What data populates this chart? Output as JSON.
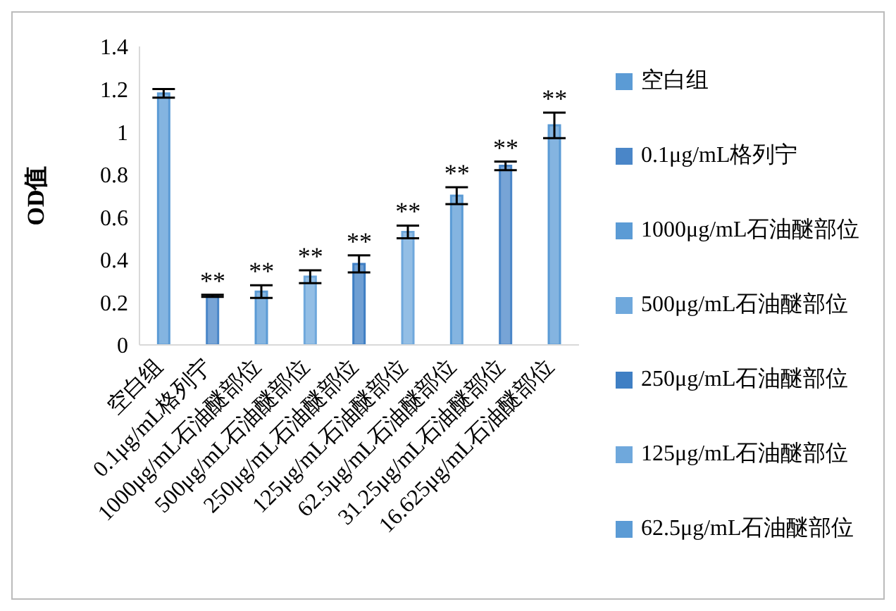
{
  "chart_data": {
    "type": "bar",
    "stacked": true,
    "ylabel": "OD值",
    "categories": [
      "空白组",
      "0.1μg/mL格列宁",
      "1000μg/mL石油醚部位",
      "500μg/mL石油醚部位",
      "250μg/mL石油醚部位",
      "125μg/mL石油醚部位",
      "62.5μg/mL石油醚部位",
      "31.25μg/mL石油醚部位",
      "16.625μg/mL石油醚部位"
    ],
    "series": [
      {
        "name": "空白组",
        "color": "#5b9bd5",
        "values": [
          1.18,
          null,
          null,
          null,
          null,
          null,
          null,
          null,
          null
        ],
        "errors": [
          0.02,
          null,
          null,
          null,
          null,
          null,
          null,
          null,
          null
        ]
      },
      {
        "name": "0.1μg/mL格列宁",
        "color": "#4a86c8",
        "values": [
          null,
          0.23,
          null,
          null,
          null,
          null,
          null,
          null,
          null
        ],
        "errors": [
          null,
          0.005,
          null,
          null,
          null,
          null,
          null,
          null,
          null
        ]
      },
      {
        "name": "1000μg/mL石油醚部位",
        "color": "#5b9bd5",
        "values": [
          null,
          null,
          0.25,
          null,
          null,
          null,
          null,
          null,
          null
        ],
        "errors": [
          null,
          null,
          0.03,
          null,
          null,
          null,
          null,
          null,
          null
        ]
      },
      {
        "name": "500μg/mL石油醚部位",
        "color": "#6fa8dc",
        "values": [
          null,
          null,
          null,
          0.32,
          null,
          null,
          null,
          null,
          null
        ],
        "errors": [
          null,
          null,
          null,
          0.03,
          null,
          null,
          null,
          null,
          null
        ]
      },
      {
        "name": "250μg/mL石油醚部位",
        "color": "#3f7fc4",
        "values": [
          null,
          null,
          null,
          null,
          0.38,
          null,
          null,
          null,
          null
        ],
        "errors": [
          null,
          null,
          null,
          null,
          0.04,
          null,
          null,
          null,
          null
        ]
      },
      {
        "name": "125μg/mL石油醚部位",
        "color": "#6fa8dc",
        "values": [
          null,
          null,
          null,
          null,
          null,
          0.53,
          null,
          null,
          null
        ],
        "errors": [
          null,
          null,
          null,
          null,
          null,
          0.03,
          null,
          null,
          null
        ]
      },
      {
        "name": "62.5μg/mL石油醚部位",
        "color": "#5b9bd5",
        "values": [
          null,
          null,
          null,
          null,
          null,
          null,
          0.7,
          null,
          null
        ],
        "errors": [
          null,
          null,
          null,
          null,
          null,
          null,
          0.04,
          null,
          null
        ]
      },
      {
        "color": "#4a86c8",
        "values": [
          null,
          null,
          null,
          null,
          null,
          null,
          null,
          0.84,
          null
        ],
        "errors": [
          null,
          null,
          null,
          null,
          null,
          null,
          null,
          0.02,
          null
        ]
      },
      {
        "color": "#5b9bd5",
        "values": [
          null,
          null,
          null,
          null,
          null,
          null,
          null,
          null,
          1.03
        ],
        "errors": [
          null,
          null,
          null,
          null,
          null,
          null,
          null,
          null,
          0.06
        ]
      }
    ],
    "ylim": [
      0,
      1.4
    ],
    "yticks": [
      0,
      0.2,
      0.4,
      0.6,
      0.8,
      1,
      1.2,
      1.4
    ],
    "grid": false,
    "legend": "right",
    "annotations": [
      {
        "text": "**",
        "x": "0.1μg/mL格列宁",
        "y": 0.235
      },
      {
        "text": "**",
        "x": "1000μg/mL石油醚部位",
        "y": 0.28
      },
      {
        "text": "**",
        "x": "500μg/mL石油醚部位",
        "y": 0.35
      },
      {
        "text": "**",
        "x": "250μg/mL石油醚部位",
        "y": 0.42
      },
      {
        "text": "**",
        "x": "125μg/mL石油醚部位",
        "y": 0.56
      },
      {
        "text": "**",
        "x": "62.5μg/mL石油醚部位",
        "y": 0.74
      },
      {
        "text": "**",
        "x": "31.25μg/mL石油醚部位",
        "y": 0.86
      },
      {
        "text": "**",
        "x": "16.625μg/mL石油醚部位",
        "y": 1.09
      }
    ]
  }
}
